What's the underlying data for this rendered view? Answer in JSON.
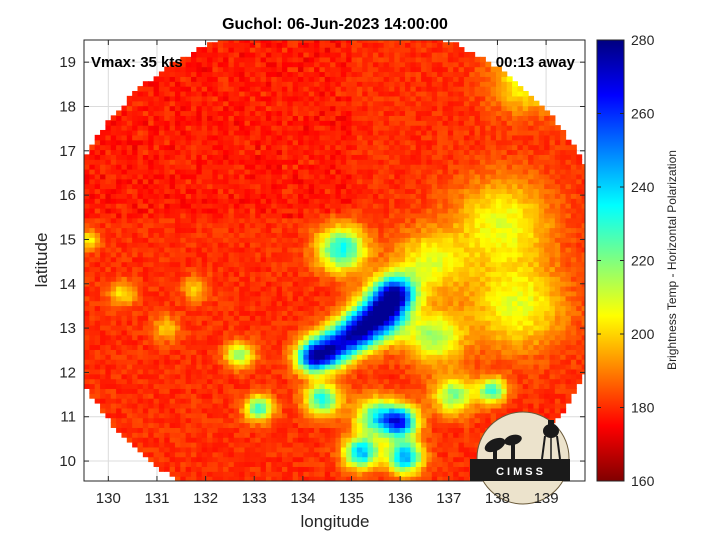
{
  "chart_data": {
    "type": "heatmap",
    "title": "Guchol: 06-Jun-2023 14:00:00",
    "xlabel": "longitude",
    "ylabel": "latitude",
    "xlim": [
      129.5,
      139.8
    ],
    "ylim": [
      9.55,
      19.5
    ],
    "xticks": [
      "130",
      "131",
      "132",
      "133",
      "134",
      "135",
      "136",
      "137",
      "138",
      "139"
    ],
    "yticks": [
      "10",
      "11",
      "12",
      "13",
      "14",
      "15",
      "16",
      "17",
      "18",
      "19"
    ],
    "grid": true,
    "annotations": {
      "vmax": "Vmax: 35 kts",
      "time_offset": "00:13 away"
    },
    "swath": {
      "center_lon": 134.6,
      "center_lat": 14.3,
      "radius_deg": 5.7
    },
    "features": [
      {
        "lon": 135.6,
        "lat": 13.3,
        "intensity": 0.98,
        "spread": 0.35
      },
      {
        "lon": 135.9,
        "lat": 13.8,
        "intensity": 0.85,
        "spread": 0.3
      },
      {
        "lon": 135.1,
        "lat": 12.9,
        "intensity": 0.85,
        "spread": 0.3
      },
      {
        "lon": 134.6,
        "lat": 12.55,
        "intensity": 0.8,
        "spread": 0.3
      },
      {
        "lon": 134.2,
        "lat": 12.35,
        "intensity": 0.8,
        "spread": 0.25
      },
      {
        "lon": 134.8,
        "lat": 14.8,
        "intensity": 0.6,
        "spread": 0.35
      },
      {
        "lon": 136.0,
        "lat": 10.9,
        "intensity": 0.85,
        "spread": 0.25
      },
      {
        "lon": 136.1,
        "lat": 10.1,
        "intensity": 0.75,
        "spread": 0.25
      },
      {
        "lon": 135.2,
        "lat": 10.2,
        "intensity": 0.7,
        "spread": 0.25
      },
      {
        "lon": 135.5,
        "lat": 11.0,
        "intensity": 0.55,
        "spread": 0.3
      },
      {
        "lon": 134.4,
        "lat": 11.4,
        "intensity": 0.6,
        "spread": 0.25
      },
      {
        "lon": 133.1,
        "lat": 11.2,
        "intensity": 0.55,
        "spread": 0.2
      },
      {
        "lon": 132.7,
        "lat": 12.4,
        "intensity": 0.45,
        "spread": 0.2
      },
      {
        "lon": 137.1,
        "lat": 11.5,
        "intensity": 0.45,
        "spread": 0.3
      },
      {
        "lon": 137.9,
        "lat": 11.6,
        "intensity": 0.55,
        "spread": 0.2
      },
      {
        "lon": 136.7,
        "lat": 12.8,
        "intensity": 0.4,
        "spread": 0.4
      },
      {
        "lon": 138.1,
        "lat": 15.4,
        "intensity": 0.3,
        "spread": 0.7
      },
      {
        "lon": 138.4,
        "lat": 13.5,
        "intensity": 0.3,
        "spread": 0.7
      },
      {
        "lon": 138.6,
        "lat": 18.6,
        "intensity": 0.3,
        "spread": 0.5
      },
      {
        "lon": 136.6,
        "lat": 14.5,
        "intensity": 0.3,
        "spread": 0.5
      },
      {
        "lon": 130.3,
        "lat": 13.8,
        "intensity": 0.25,
        "spread": 0.2
      },
      {
        "lon": 131.2,
        "lat": 13.0,
        "intensity": 0.22,
        "spread": 0.2
      },
      {
        "lon": 131.8,
        "lat": 13.9,
        "intensity": 0.2,
        "spread": 0.2
      },
      {
        "lon": 129.6,
        "lat": 15.0,
        "intensity": 0.3,
        "spread": 0.15
      }
    ],
    "colorbar": {
      "label": "Brightness Temp - Horizontal Polarization",
      "range": [
        160,
        280
      ],
      "ticks": [
        "280",
        "260",
        "240",
        "220",
        "200",
        "180",
        "160"
      ],
      "colormap": "jet"
    }
  },
  "logo": {
    "text": "CIMSS"
  }
}
